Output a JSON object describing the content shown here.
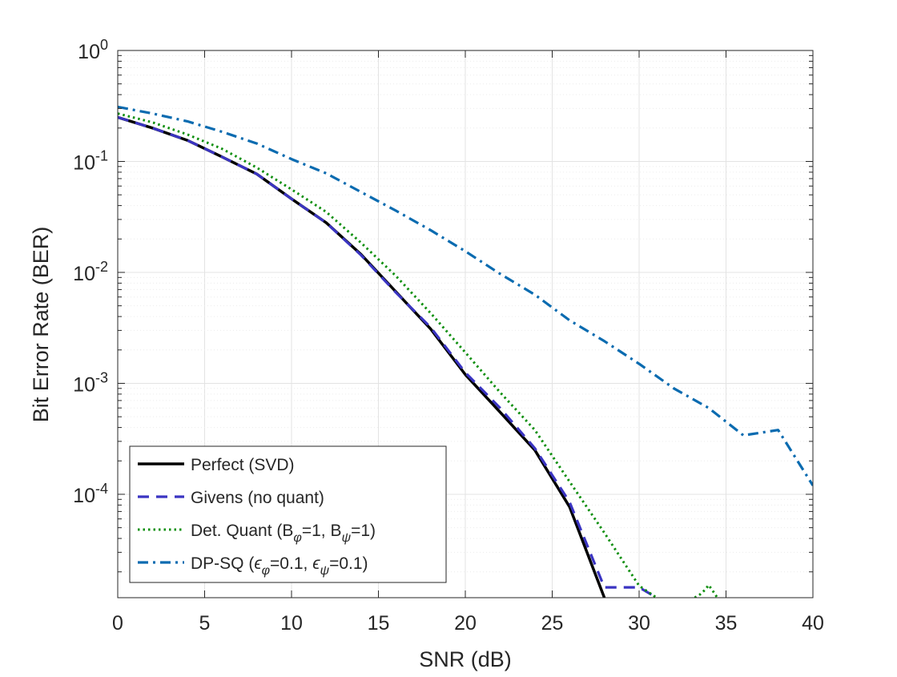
{
  "chart_data": {
    "type": "line",
    "title": "",
    "xlabel": "SNR (dB)",
    "ylabel": "Bit Error Rate (BER)",
    "x_scale": "linear",
    "y_scale": "log",
    "xlim": [
      0,
      40
    ],
    "ylim": [
      1.17e-05,
      1
    ],
    "grid": true,
    "minor_grid": true,
    "legend_position": "lower-left",
    "xticks": [
      0,
      5,
      10,
      15,
      20,
      25,
      30,
      35,
      40
    ],
    "xtick_labels": [
      "0",
      "5",
      "10",
      "15",
      "20",
      "25",
      "30",
      "35",
      "40"
    ],
    "yticks": [
      1,
      0.1,
      0.01,
      0.001,
      0.0001
    ],
    "ytick_labels": [
      {
        "base": "10",
        "exp": "0"
      },
      {
        "base": "10",
        "exp": "-1"
      },
      {
        "base": "10",
        "exp": "-2"
      },
      {
        "base": "10",
        "exp": "-3"
      },
      {
        "base": "10",
        "exp": "-4"
      }
    ],
    "series": [
      {
        "legend": {
          "main": "Perfect (SVD)"
        },
        "color": "#000000",
        "style": "solid",
        "x": [
          0,
          2,
          4,
          6,
          8,
          10,
          12,
          14,
          16,
          18,
          20,
          22,
          24,
          26,
          28
        ],
        "y": [
          0.25,
          0.2,
          0.155,
          0.11,
          0.077,
          0.046,
          0.028,
          0.0145,
          0.0067,
          0.0031,
          0.0012,
          0.00055,
          0.00025,
          7.7e-05,
          1.17e-05
        ]
      },
      {
        "legend": {
          "main": "Givens (no quant)"
        },
        "color": "#3a34c2",
        "style": "dashed",
        "x": [
          0,
          2,
          4,
          6,
          8,
          10,
          12,
          14,
          16,
          18,
          20,
          22,
          24,
          26,
          28,
          30,
          31
        ],
        "y": [
          0.25,
          0.2,
          0.155,
          0.11,
          0.077,
          0.046,
          0.028,
          0.0143,
          0.0066,
          0.0032,
          0.00125,
          0.0006,
          0.00026,
          8.5e-05,
          1.45e-05,
          1.45e-05,
          1.17e-05
        ]
      },
      {
        "legend": {
          "main": "Det. Quant (B",
          "sub1": "φ",
          "mid": "=1, B",
          "sub2": "ψ",
          "end": "=1)"
        },
        "color": "#0e8f0e",
        "style": "dotted",
        "x": [
          0,
          2,
          4,
          6,
          8,
          10,
          12,
          14,
          16,
          18,
          20,
          22,
          24,
          26,
          28,
          30,
          31
        ],
        "y": [
          0.27,
          0.225,
          0.175,
          0.13,
          0.088,
          0.056,
          0.035,
          0.0185,
          0.0093,
          0.0043,
          0.0019,
          0.00083,
          0.00038,
          0.00013,
          4.5e-05,
          1.5e-05,
          1.17e-05
        ]
      },
      {
        "legend": {
          "main": "DP-SQ (",
          "sym1": "ϵ",
          "sub1": "φ",
          "mid": "=0.1, ",
          "sym2": "ϵ",
          "sub2": "ψ",
          "end": "=0.1)"
        },
        "color": "#0a6bb0",
        "style": "dashdot",
        "x": [
          0,
          2,
          4,
          6,
          8,
          10,
          12,
          14,
          16,
          18,
          20,
          22,
          24,
          26,
          28,
          30,
          32,
          34,
          36,
          38,
          40
        ],
        "y": [
          0.31,
          0.27,
          0.23,
          0.185,
          0.145,
          0.105,
          0.078,
          0.053,
          0.036,
          0.024,
          0.0155,
          0.0097,
          0.0063,
          0.0037,
          0.0024,
          0.0015,
          0.0009,
          0.0006,
          0.00034,
          0.00038,
          0.00012
        ]
      },
      {
        "legend": null,
        "color": "#0e8f0e",
        "style": "dotted",
        "x": [
          33.2,
          33.5,
          33.8,
          34.0,
          34.2,
          34.5
        ],
        "y": [
          1.17e-05,
          1.25e-05,
          1.38e-05,
          1.52e-05,
          1.38e-05,
          1.17e-05
        ]
      }
    ]
  }
}
